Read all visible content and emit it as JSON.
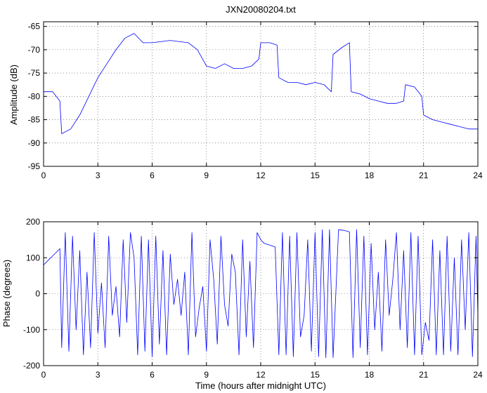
{
  "figure_title": "JXN20080204.txt",
  "colors": {
    "series": "#0000ff",
    "axes": "#000000",
    "background": "#ffffff"
  },
  "chart_data": [
    {
      "type": "line",
      "title": "JXN20080204.txt",
      "xlabel": "",
      "ylabel": "Amplitude (dB)",
      "xlim": [
        0,
        24
      ],
      "ylim": [
        -95,
        -64
      ],
      "xticks": [
        0,
        3,
        6,
        9,
        12,
        15,
        18,
        21,
        24
      ],
      "yticks": [
        -95,
        -90,
        -85,
        -80,
        -75,
        -70,
        -65
      ],
      "xtick_labels": [
        "0",
        "3",
        "6",
        "9",
        "12",
        "15",
        "18",
        "21",
        "24"
      ],
      "ytick_labels": [
        "-95",
        "-90",
        "-85",
        "-80",
        "-75",
        "-70",
        "-65"
      ],
      "grid": true,
      "series": [
        {
          "x": [
            0,
            0.5,
            0.9,
            1.0,
            1.5,
            2.0,
            2.5,
            3.0,
            3.5,
            4.0,
            4.5,
            5.0,
            5.5,
            6.0,
            7.0,
            8.0,
            8.5,
            9.0,
            9.5,
            10.0,
            10.5,
            11.0,
            11.5,
            11.9,
            12.0,
            12.5,
            12.9,
            13.0,
            13.5,
            14.0,
            14.5,
            15.0,
            15.5,
            15.9,
            16.0,
            16.5,
            16.9,
            17.0,
            17.5,
            18.0,
            18.5,
            19.0,
            19.5,
            19.9,
            20.0,
            20.5,
            20.9,
            21.0,
            21.5,
            22.0,
            22.5,
            23.0,
            23.5,
            24.0
          ],
          "y": [
            -79,
            -79,
            -81,
            -88,
            -87,
            -84,
            -80,
            -76,
            -73,
            -70,
            -67.5,
            -66.5,
            -68.5,
            -68.5,
            -68,
            -68.5,
            -70,
            -73.5,
            -74,
            -73,
            -74,
            -74,
            -73.5,
            -72,
            -68.5,
            -68.5,
            -69,
            -76,
            -77,
            -77,
            -77.5,
            -77,
            -77.5,
            -79,
            -71,
            -69.5,
            -68.5,
            -79,
            -79.5,
            -80.5,
            -81,
            -81.5,
            -81.5,
            -81,
            -77.5,
            -78,
            -80,
            -84,
            -85,
            -85.5,
            -86,
            -86.5,
            -87,
            -87
          ]
        }
      ]
    },
    {
      "type": "line",
      "title": "",
      "xlabel": "Time (hours after midnight UTC)",
      "ylabel": "Phase (degrees)",
      "xlim": [
        0,
        24
      ],
      "ylim": [
        -200,
        200
      ],
      "xticks": [
        0,
        3,
        6,
        9,
        12,
        15,
        18,
        21,
        24
      ],
      "yticks": [
        -200,
        -100,
        0,
        100,
        200
      ],
      "xtick_labels": [
        "0",
        "3",
        "6",
        "9",
        "12",
        "15",
        "18",
        "21",
        "24"
      ],
      "ytick_labels": [
        "-200",
        "-100",
        "0",
        "100",
        "200"
      ],
      "grid": true,
      "series": [
        {
          "x": [
            0,
            0.3,
            0.6,
            0.9,
            1.0,
            1.2,
            1.4,
            1.6,
            1.8,
            2.0,
            2.2,
            2.4,
            2.6,
            2.8,
            3.0,
            3.2,
            3.4,
            3.6,
            3.8,
            4.0,
            4.2,
            4.4,
            4.6,
            4.8,
            5.0,
            5.2,
            5.4,
            5.6,
            5.8,
            6.0,
            6.2,
            6.4,
            6.6,
            6.8,
            7.0,
            7.2,
            7.4,
            7.6,
            7.8,
            8.0,
            8.2,
            8.4,
            8.6,
            8.8,
            9.0,
            9.2,
            9.4,
            9.6,
            9.8,
            10.0,
            10.2,
            10.4,
            10.6,
            10.8,
            11.0,
            11.2,
            11.4,
            11.6,
            11.8,
            12.0,
            12.2,
            12.5,
            12.8,
            13.0,
            13.2,
            13.4,
            13.6,
            13.8,
            14.0,
            14.2,
            14.4,
            14.6,
            14.8,
            15.0,
            15.2,
            15.4,
            15.6,
            15.8,
            16.0,
            16.3,
            16.6,
            16.9,
            17.1,
            17.3,
            17.5,
            17.7,
            17.9,
            18.1,
            18.3,
            18.5,
            18.7,
            18.9,
            19.1,
            19.3,
            19.5,
            19.7,
            19.9,
            20.1,
            20.3,
            20.5,
            20.7,
            20.9,
            21.1,
            21.3,
            21.5,
            21.7,
            21.9,
            22.1,
            22.3,
            22.5,
            22.7,
            22.9,
            23.1,
            23.3,
            23.5,
            23.7,
            23.9,
            24.0
          ],
          "y": [
            80,
            95,
            110,
            125,
            -150,
            170,
            -160,
            160,
            -100,
            120,
            -170,
            60,
            -150,
            170,
            -110,
            30,
            -150,
            160,
            -60,
            20,
            -120,
            150,
            -80,
            170,
            100,
            -170,
            160,
            -160,
            150,
            -175,
            160,
            -140,
            120,
            -170,
            110,
            -30,
            40,
            -60,
            60,
            -170,
            170,
            -120,
            -40,
            20,
            -160,
            150,
            40,
            -140,
            160,
            -30,
            -90,
            110,
            60,
            -170,
            150,
            -120,
            90,
            -150,
            170,
            150,
            140,
            135,
            130,
            -170,
            170,
            -170,
            160,
            -175,
            170,
            -120,
            -60,
            150,
            -160,
            170,
            -175,
            178,
            -178,
            178,
            -178,
            178,
            176,
            172,
            -178,
            178,
            -150,
            160,
            -170,
            140,
            -100,
            60,
            -160,
            150,
            -60,
            40,
            170,
            -100,
            120,
            -150,
            170,
            -170,
            160,
            -170,
            -80,
            -130,
            150,
            -170,
            120,
            -170,
            160,
            -160,
            100,
            -170,
            150,
            -100,
            170,
            -175,
            160,
            -60
          ]
        }
      ]
    }
  ]
}
